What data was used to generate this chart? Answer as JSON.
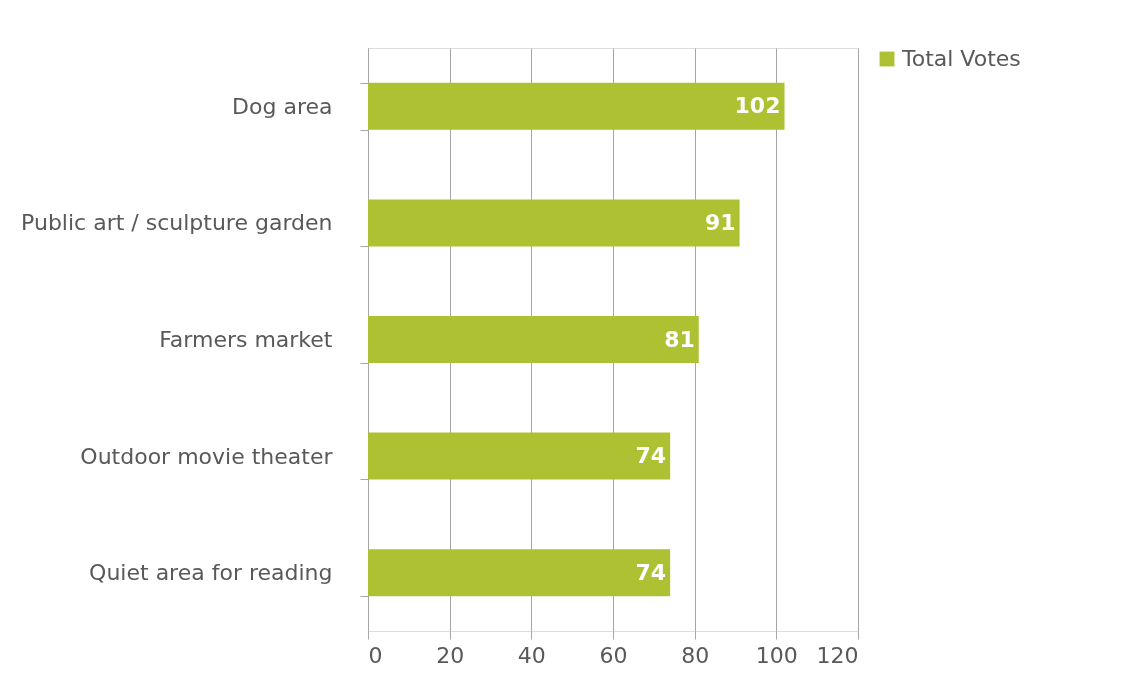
{
  "chart_data": {
    "type": "bar",
    "orientation": "horizontal",
    "categories": [
      "Dog area",
      "Public art / sculpture garden",
      "Farmers market",
      "Outdoor movie theater",
      "Quiet area for reading"
    ],
    "series": [
      {
        "name": "Total Votes",
        "color": "#adc132",
        "values": [
          102,
          91,
          81,
          74,
          74
        ]
      }
    ],
    "xlim": [
      0,
      120
    ],
    "xticks": [
      0,
      20,
      40,
      60,
      80,
      100,
      120
    ],
    "grid": "x",
    "legend": "right",
    "data_labels": true
  }
}
